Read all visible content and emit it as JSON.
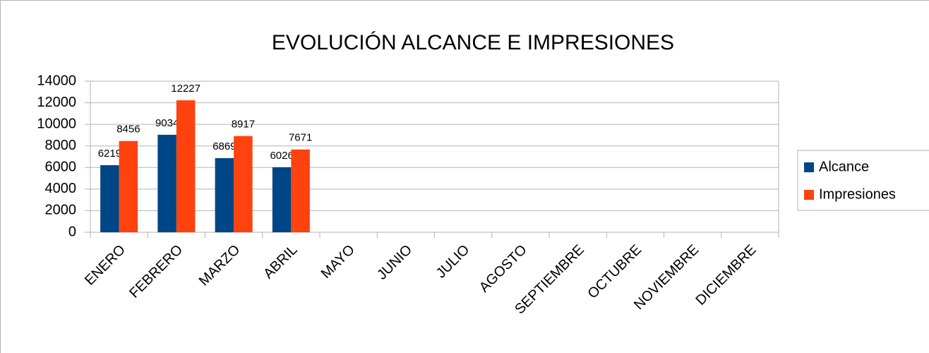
{
  "chart_data": {
    "type": "bar",
    "title": "EVOLUCIÓN ALCANCE E IMPRESIONES",
    "categories": [
      "ENERO",
      "FEBRERO",
      "MARZO",
      "ABRIL",
      "MAYO",
      "JUNIO",
      "JULIO",
      "AGOSTO",
      "SEPTIEMBRE",
      "OCTUBRE",
      "NOVIEMBRE",
      "DICIEMBRE"
    ],
    "series": [
      {
        "name": "Alcance",
        "color": "#004586",
        "values": [
          6219,
          9034,
          6869,
          6026,
          null,
          null,
          null,
          null,
          null,
          null,
          null,
          null
        ]
      },
      {
        "name": "Impresiones",
        "color": "#ff420e",
        "values": [
          8456,
          12227,
          8917,
          7671,
          null,
          null,
          null,
          null,
          null,
          null,
          null,
          null
        ]
      }
    ],
    "ylim": [
      0,
      14000
    ],
    "yticks": [
      0,
      2000,
      4000,
      6000,
      8000,
      10000,
      12000,
      14000
    ],
    "grid": true,
    "legend": "right"
  }
}
